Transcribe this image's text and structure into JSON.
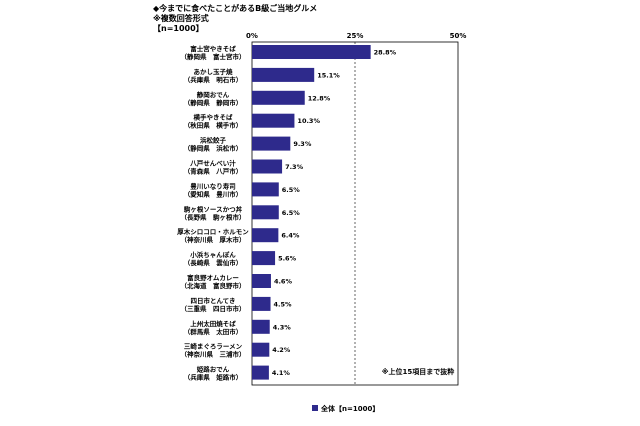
{
  "header": {
    "title": "◆今までに食べたことがあるB級ご当地グルメ",
    "note": "※複数回答形式",
    "sample": "【n=1000】"
  },
  "chart_data": {
    "type": "bar",
    "orientation": "horizontal",
    "categories": [
      [
        "富士宮やきそば",
        "（静岡県　富士宮市）"
      ],
      [
        "あかし玉子焼",
        "（兵庫県　明石市）"
      ],
      [
        "静岡おでん",
        "（静岡県　静岡市）"
      ],
      [
        "横手やきそば",
        "（秋田県　横手市）"
      ],
      [
        "浜松餃子",
        "（静岡県　浜松市）"
      ],
      [
        "八戸せんべい汁",
        "（青森県　八戸市）"
      ],
      [
        "豊川いなり寿司",
        "（愛知県　豊川市）"
      ],
      [
        "駒ヶ根ソースかつ丼",
        "（長野県　駒ヶ根市）"
      ],
      [
        "厚木シロコロ・ホルモン",
        "（神奈川県　厚木市）"
      ],
      [
        "小浜ちゃんぽん",
        "（長崎県　雲仙市）"
      ],
      [
        "富良野オムカレー",
        "（北海道　富良野市）"
      ],
      [
        "四日市とんてき",
        "（三重県　四日市市）"
      ],
      [
        "上州太田焼そば",
        "（群馬県　太田市）"
      ],
      [
        "三崎まぐろラーメン",
        "（神奈川県　三浦市）"
      ],
      [
        "姫路おでん",
        "（兵庫県　姫路市）"
      ]
    ],
    "series": [
      {
        "name": "全体【n=1000】",
        "values": [
          28.8,
          15.1,
          12.8,
          10.3,
          9.3,
          7.3,
          6.5,
          6.5,
          6.4,
          5.6,
          4.6,
          4.5,
          4.3,
          4.2,
          4.1
        ],
        "labels": [
          "28.8%",
          "15.1%",
          "12.8%",
          "10.3%",
          "9.3%",
          "7.3%",
          "6.5%",
          "6.5%",
          "6.4%",
          "5.6%",
          "4.6%",
          "4.5%",
          "4.3%",
          "4.2%",
          "4.1%"
        ]
      }
    ],
    "ticks": [
      "0%",
      "25%",
      "50%"
    ],
    "xlim": [
      0,
      50
    ],
    "annotation": "※上位15項目まで抜粋",
    "legend_position": "bottom",
    "grid": "dashed line at 25%",
    "color": "#2e2a8c"
  }
}
